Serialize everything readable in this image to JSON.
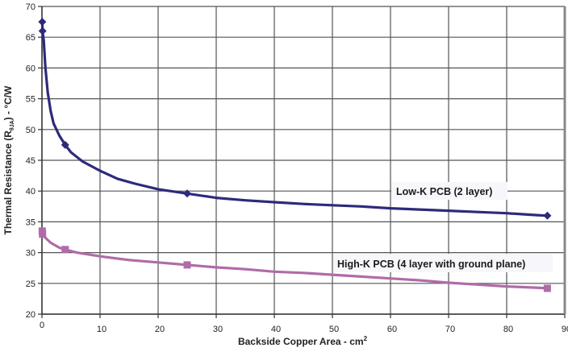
{
  "chart_data": {
    "type": "line",
    "title": "",
    "xlabel": "Backside Copper Area - cm²",
    "xlabel_main": "Backside Copper Area - cm",
    "xlabel_sup": "2",
    "ylabel": "Thermal Resistance (RθJA) - °C/W",
    "ylabel_pre": "Thermal Resistance (R",
    "ylabel_sub": "θJA",
    "ylabel_post": ") - °C/W",
    "xlim": [
      0,
      90
    ],
    "ylim": [
      20,
      70
    ],
    "x_ticks": [
      0,
      10,
      20,
      30,
      40,
      50,
      60,
      70,
      80,
      90
    ],
    "y_ticks": [
      20,
      25,
      30,
      35,
      40,
      45,
      50,
      55,
      60,
      65,
      70
    ],
    "grid": true,
    "legend_position": "inline labels",
    "series": [
      {
        "name": "Low-K PCB (2 layer)",
        "color": "#2e2a7a",
        "marker": "diamond",
        "markers": [
          [
            0.05,
            67.5
          ],
          [
            0.1,
            66.0
          ],
          [
            4.0,
            47.5
          ],
          [
            25.0,
            39.6
          ],
          [
            87.0,
            36.0
          ]
        ],
        "x": [
          0.05,
          0.1,
          0.3,
          0.6,
          1.0,
          1.5,
          2.0,
          3.0,
          4.0,
          5.0,
          7.0,
          10.0,
          13.0,
          16.0,
          20.0,
          25.0,
          30.0,
          35.0,
          40.0,
          45.0,
          50.0,
          55.0,
          60.0,
          65.0,
          70.0,
          75.0,
          80.0,
          85.0,
          87.0
        ],
        "values": [
          67.5,
          66.0,
          64.5,
          60.0,
          56.0,
          53.0,
          51.0,
          49.0,
          47.5,
          46.3,
          44.8,
          43.3,
          42.0,
          41.2,
          40.3,
          39.6,
          38.9,
          38.5,
          38.2,
          37.9,
          37.7,
          37.5,
          37.2,
          37.0,
          36.8,
          36.6,
          36.4,
          36.1,
          36.0
        ],
        "label_text": "Low-K PCB (2 layer)"
      },
      {
        "name": "High-K PCB (4 layer with ground plane)",
        "color": "#b06ba8",
        "marker": "square",
        "markers": [
          [
            0.05,
            33.5
          ],
          [
            0.1,
            33.0
          ],
          [
            4.0,
            30.5
          ],
          [
            25.0,
            28.0
          ],
          [
            87.0,
            24.2
          ]
        ],
        "x": [
          0.05,
          0.1,
          0.5,
          1.5,
          3.0,
          4.0,
          6.0,
          10.0,
          15.0,
          20.0,
          25.0,
          30.0,
          35.0,
          40.0,
          45.0,
          50.0,
          55.0,
          60.0,
          65.0,
          70.0,
          75.0,
          80.0,
          85.0,
          87.0
        ],
        "values": [
          33.5,
          33.0,
          32.5,
          31.6,
          30.8,
          30.5,
          30.0,
          29.4,
          28.8,
          28.4,
          28.0,
          27.6,
          27.3,
          26.9,
          26.7,
          26.4,
          26.1,
          25.8,
          25.5,
          25.1,
          24.8,
          24.5,
          24.3,
          24.2
        ],
        "label_text": "High-K PCB (4 layer with ground plane)"
      }
    ]
  },
  "colors": {
    "grid": "#555555",
    "axis": "#333333",
    "frame_right": "#888888",
    "label_bg": "#f7f7fb"
  }
}
